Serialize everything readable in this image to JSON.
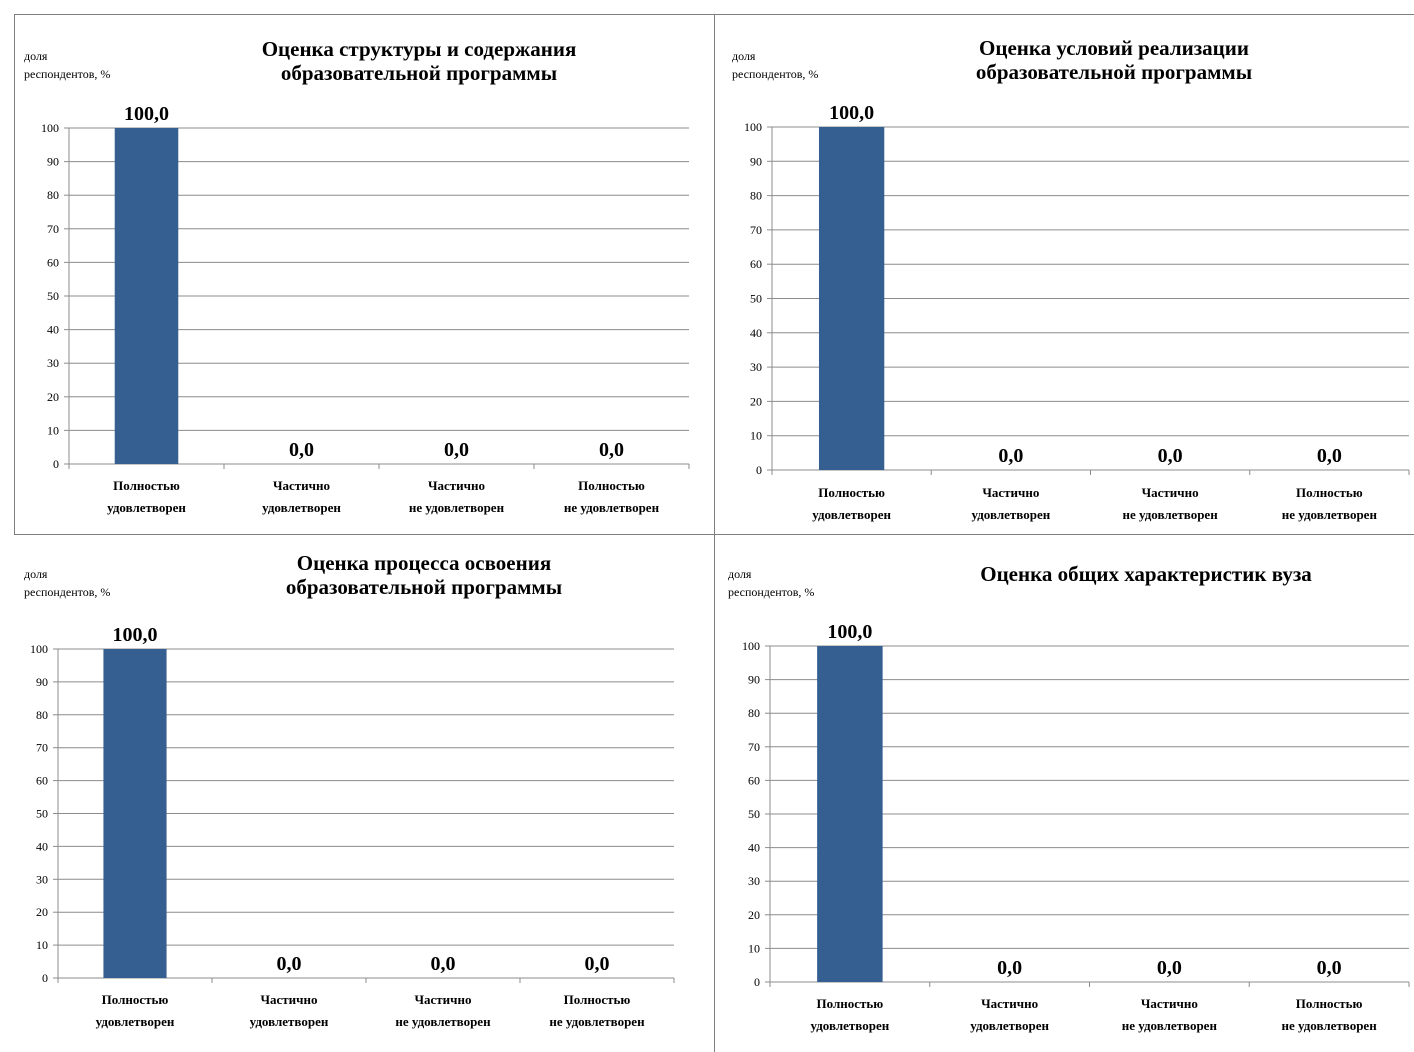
{
  "charts": [
    {
      "title_lines": [
        "Оценка структуры и содержания",
        "образовательной программы"
      ],
      "ylabel_lines": [
        "доля",
        "респондентов, %"
      ]
    },
    {
      "title_lines": [
        "Оценка условий реализации",
        "образовательной программы"
      ],
      "ylabel_lines": [
        "доля",
        "респондентов, %"
      ]
    },
    {
      "title_lines": [
        "Оценка процесса освоения",
        "образовательной программы"
      ],
      "ylabel_lines": [
        "доля",
        "респондентов, %"
      ]
    },
    {
      "title_lines": [
        "Оценка общих характеристик вуза"
      ],
      "ylabel_lines": [
        "доля",
        "респондентов, %"
      ]
    }
  ],
  "chart_data": [
    {
      "type": "bar",
      "title": "Оценка структуры и содержания образовательной программы",
      "ylabel": "доля респондентов, %",
      "categories": [
        [
          "Полностью",
          "удовлетворен"
        ],
        [
          "Частично",
          "удовлетворен"
        ],
        [
          "Частично",
          "не удовлетворен"
        ],
        [
          "Полностью",
          "не удовлетворен"
        ]
      ],
      "values": [
        100.0,
        0.0,
        0.0,
        0.0
      ],
      "data_labels": [
        "100,0",
        "0,0",
        "0,0",
        "0,0"
      ],
      "ylim": [
        0,
        100
      ],
      "yticks": [
        0,
        10,
        20,
        30,
        40,
        50,
        60,
        70,
        80,
        90,
        100
      ],
      "color": "#355f91",
      "grid": true
    },
    {
      "type": "bar",
      "title": "Оценка условий реализации образовательной программы",
      "ylabel": "доля респондентов, %",
      "categories": [
        [
          "Полностью",
          "удовлетворен"
        ],
        [
          "Частично",
          "удовлетворен"
        ],
        [
          "Частично",
          "не удовлетворен"
        ],
        [
          "Полностью",
          "не удовлетворен"
        ]
      ],
      "values": [
        100.0,
        0.0,
        0.0,
        0.0
      ],
      "data_labels": [
        "100,0",
        "0,0",
        "0,0",
        "0,0"
      ],
      "ylim": [
        0,
        100
      ],
      "yticks": [
        0,
        10,
        20,
        30,
        40,
        50,
        60,
        70,
        80,
        90,
        100
      ],
      "color": "#355f91",
      "grid": true
    },
    {
      "type": "bar",
      "title": "Оценка процесса освоения образовательной программы",
      "ylabel": "доля респондентов, %",
      "categories": [
        [
          "Полностью",
          "удовлетворен"
        ],
        [
          "Частично",
          "удовлетворен"
        ],
        [
          "Частично",
          "не удовлетворен"
        ],
        [
          "Полностью",
          "не удовлетворен"
        ]
      ],
      "values": [
        100.0,
        0.0,
        0.0,
        0.0
      ],
      "data_labels": [
        "100,0",
        "0,0",
        "0,0",
        "0,0"
      ],
      "ylim": [
        0,
        100
      ],
      "yticks": [
        0,
        10,
        20,
        30,
        40,
        50,
        60,
        70,
        80,
        90,
        100
      ],
      "color": "#355f91",
      "grid": true
    },
    {
      "type": "bar",
      "title": "Оценка общих характеристик вуза",
      "ylabel": "доля респондентов, %",
      "categories": [
        [
          "Полностью",
          "удовлетворен"
        ],
        [
          "Частично",
          "удовлетворен"
        ],
        [
          "Частично",
          "не удовлетворен"
        ],
        [
          "Полностью",
          "не удовлетворен"
        ]
      ],
      "values": [
        100.0,
        0.0,
        0.0,
        0.0
      ],
      "data_labels": [
        "100,0",
        "0,0",
        "0,0",
        "0,0"
      ],
      "ylim": [
        0,
        100
      ],
      "yticks": [
        0,
        10,
        20,
        30,
        40,
        50,
        60,
        70,
        80,
        90,
        100
      ],
      "color": "#355f91",
      "grid": true
    }
  ]
}
